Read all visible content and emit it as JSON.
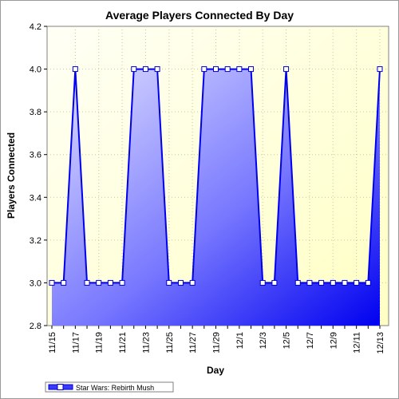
{
  "chart_data": {
    "type": "area",
    "title": "Average Players Connected By Day",
    "xlabel": "Day",
    "ylabel": "Players Connected",
    "ylim": [
      2.8,
      4.2
    ],
    "yticks": [
      "2.8",
      "3.0",
      "3.2",
      "3.4",
      "3.6",
      "3.8",
      "4.0",
      "4.2"
    ],
    "xtick_labels": [
      "11/15",
      "11/17",
      "11/19",
      "11/21",
      "11/23",
      "11/25",
      "11/27",
      "11/29",
      "12/1",
      "12/3",
      "12/5",
      "12/7",
      "12/9",
      "12/11",
      "12/13"
    ],
    "grid": true,
    "legend_position": "bottom-left",
    "x": [
      "11/15",
      "11/16",
      "11/17",
      "11/18",
      "11/19",
      "11/20",
      "11/21",
      "11/22",
      "11/23",
      "11/24",
      "11/25",
      "11/26",
      "11/27",
      "11/28",
      "11/29",
      "11/30",
      "12/1",
      "12/2",
      "12/3",
      "12/4",
      "12/5",
      "12/6",
      "12/7",
      "12/8",
      "12/9",
      "12/10",
      "12/11",
      "12/12",
      "12/13"
    ],
    "series": [
      {
        "name": "Star Wars: Rebirth Mush",
        "values": [
          3,
          3,
          4,
          3,
          3,
          3,
          3,
          4,
          4,
          4,
          3,
          3,
          3,
          4,
          4,
          4,
          4,
          4,
          3,
          3,
          4,
          3,
          3,
          3,
          3,
          3,
          3,
          3,
          4
        ]
      }
    ],
    "colors": {
      "line": "#0000ee",
      "fill_light": "#d8d8ff",
      "fill_dark": "#0000ff",
      "plot_bg_light": "#fffff0",
      "plot_bg_dark": "#ffffc8",
      "grid": "#c8c8a0"
    }
  }
}
